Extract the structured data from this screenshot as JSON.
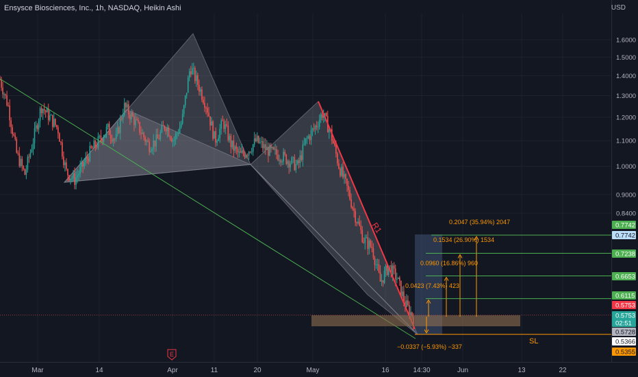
{
  "header": {
    "title": "Ensysce Biosciences, Inc., 1h, NASDAQ, Heikin Ashi",
    "currency": "USD"
  },
  "colors": {
    "background": "#131722",
    "grid": "#1e222d",
    "up_candle": "#26a69a",
    "down_candle": "#ef5350",
    "trendline": "#4caf50",
    "pattern_fill": "#9598a1",
    "resistance_line": "#f23645",
    "measure_text": "#ff9800",
    "target_line": "#4caf50",
    "sl_line": "#ff9800",
    "zone_fill": "#8d6e4f",
    "projection_box": "#4a5f86",
    "label_green": "#4caf50",
    "label_red": "#f23645",
    "label_blue_light": "#bbdefb",
    "label_gray": "#b2b5be",
    "label_orange": "#ff9800",
    "label_teal": "#26a69a"
  },
  "chart_data": {
    "type": "candlestick",
    "title": "Ensysce Biosciences, Inc., 1h, NASDAQ, Heikin Ashi",
    "y_scale": "log",
    "ylim": [
      0.52,
      1.72
    ],
    "y_ticks": [
      "1.6000",
      "1.5000",
      "1.4000",
      "1.3000",
      "1.2000",
      "1.1000",
      "1.0000",
      "0.9000",
      "0.8400"
    ],
    "y_tick_values": [
      1.6,
      1.5,
      1.4,
      1.3,
      1.2,
      1.1,
      1.0,
      0.9,
      0.84
    ],
    "x_ticks": [
      "Mar",
      "14",
      "Apr",
      "11",
      "20",
      "May",
      "16",
      "14:30",
      "Jun",
      "13",
      "22"
    ],
    "price_path": [
      {
        "t": 0.0,
        "p": 1.38
      },
      {
        "t": 2,
        "p": 1.25
      },
      {
        "t": 4,
        "p": 1.05
      },
      {
        "t": 6,
        "p": 0.97
      },
      {
        "t": 8,
        "p": 1.1
      },
      {
        "t": 10,
        "p": 1.25
      },
      {
        "t": 12,
        "p": 1.2
      },
      {
        "t": 14,
        "p": 1.15
      },
      {
        "t": 16,
        "p": 0.98
      },
      {
        "t": 18,
        "p": 0.95
      },
      {
        "t": 20,
        "p": 1.0
      },
      {
        "t": 22,
        "p": 1.06
      },
      {
        "t": 24,
        "p": 1.1
      },
      {
        "t": 26,
        "p": 1.15
      },
      {
        "t": 28,
        "p": 1.1
      },
      {
        "t": 30,
        "p": 1.25
      },
      {
        "t": 32,
        "p": 1.2
      },
      {
        "t": 34,
        "p": 1.14
      },
      {
        "t": 36,
        "p": 1.08
      },
      {
        "t": 38,
        "p": 1.1
      },
      {
        "t": 40,
        "p": 1.17
      },
      {
        "t": 42,
        "p": 1.1
      },
      {
        "t": 44,
        "p": 1.18
      },
      {
        "t": 46,
        "p": 1.45
      },
      {
        "t": 48,
        "p": 1.35
      },
      {
        "t": 50,
        "p": 1.25
      },
      {
        "t": 52,
        "p": 1.1
      },
      {
        "t": 54,
        "p": 1.18
      },
      {
        "t": 56,
        "p": 1.08
      },
      {
        "t": 58,
        "p": 1.04
      },
      {
        "t": 60,
        "p": 1.06
      },
      {
        "t": 62,
        "p": 1.1
      },
      {
        "t": 64,
        "p": 1.07
      },
      {
        "t": 66,
        "p": 1.05
      },
      {
        "t": 68,
        "p": 1.04
      },
      {
        "t": 70,
        "p": 1.02
      },
      {
        "t": 72,
        "p": 1.0
      },
      {
        "t": 74,
        "p": 1.1
      },
      {
        "t": 76,
        "p": 1.15
      },
      {
        "t": 78,
        "p": 1.22
      },
      {
        "t": 80,
        "p": 1.13
      },
      {
        "t": 82,
        "p": 1.0
      },
      {
        "t": 84,
        "p": 0.92
      },
      {
        "t": 86,
        "p": 0.83
      },
      {
        "t": 88,
        "p": 0.76
      },
      {
        "t": 90,
        "p": 0.74
      },
      {
        "t": 92,
        "p": 0.65
      },
      {
        "t": 94,
        "p": 0.69
      },
      {
        "t": 96,
        "p": 0.66
      },
      {
        "t": 98,
        "p": 0.6
      },
      {
        "t": 100,
        "p": 0.57
      }
    ],
    "price_labels": [
      {
        "text": "0.7742",
        "value": 0.7742,
        "style": "green"
      },
      {
        "text": "0.7742",
        "value": 0.7742,
        "style": "blue"
      },
      {
        "text": "0.7238",
        "value": 0.7238,
        "style": "green"
      },
      {
        "text": "0.6653",
        "value": 0.6653,
        "style": "green"
      },
      {
        "text": "0.6115",
        "value": 0.6115,
        "style": "green"
      },
      {
        "text": "0.5753",
        "value": 0.5753,
        "style": "red"
      },
      {
        "text": "0.5753",
        "value": 0.5753,
        "style": "teal"
      },
      {
        "text": "02:51",
        "value": 0.5753,
        "style": "teal_sub"
      },
      {
        "text": "0.5728",
        "value": 0.5728,
        "style": "gray"
      },
      {
        "text": "0.5366",
        "value": 0.5366,
        "style": "white"
      },
      {
        "text": "0.5355",
        "value": 0.5355,
        "style": "orange"
      }
    ],
    "targets": [
      {
        "text": "0.2047 (35.94%) 2047",
        "value": 0.7742
      },
      {
        "text": "0.1534 (26.90%) 1534",
        "value": 0.7238
      },
      {
        "text": "0.0960 (16.86%) 960",
        "value": 0.6653
      },
      {
        "text": "0.0423 (7.43%) 423",
        "value": 0.6115
      }
    ],
    "stop": {
      "text": "−0.0337 (−5.93%) −337",
      "value": 0.5355
    },
    "annotations": {
      "r1": "R1",
      "sl": "SL",
      "earnings": "E"
    }
  }
}
